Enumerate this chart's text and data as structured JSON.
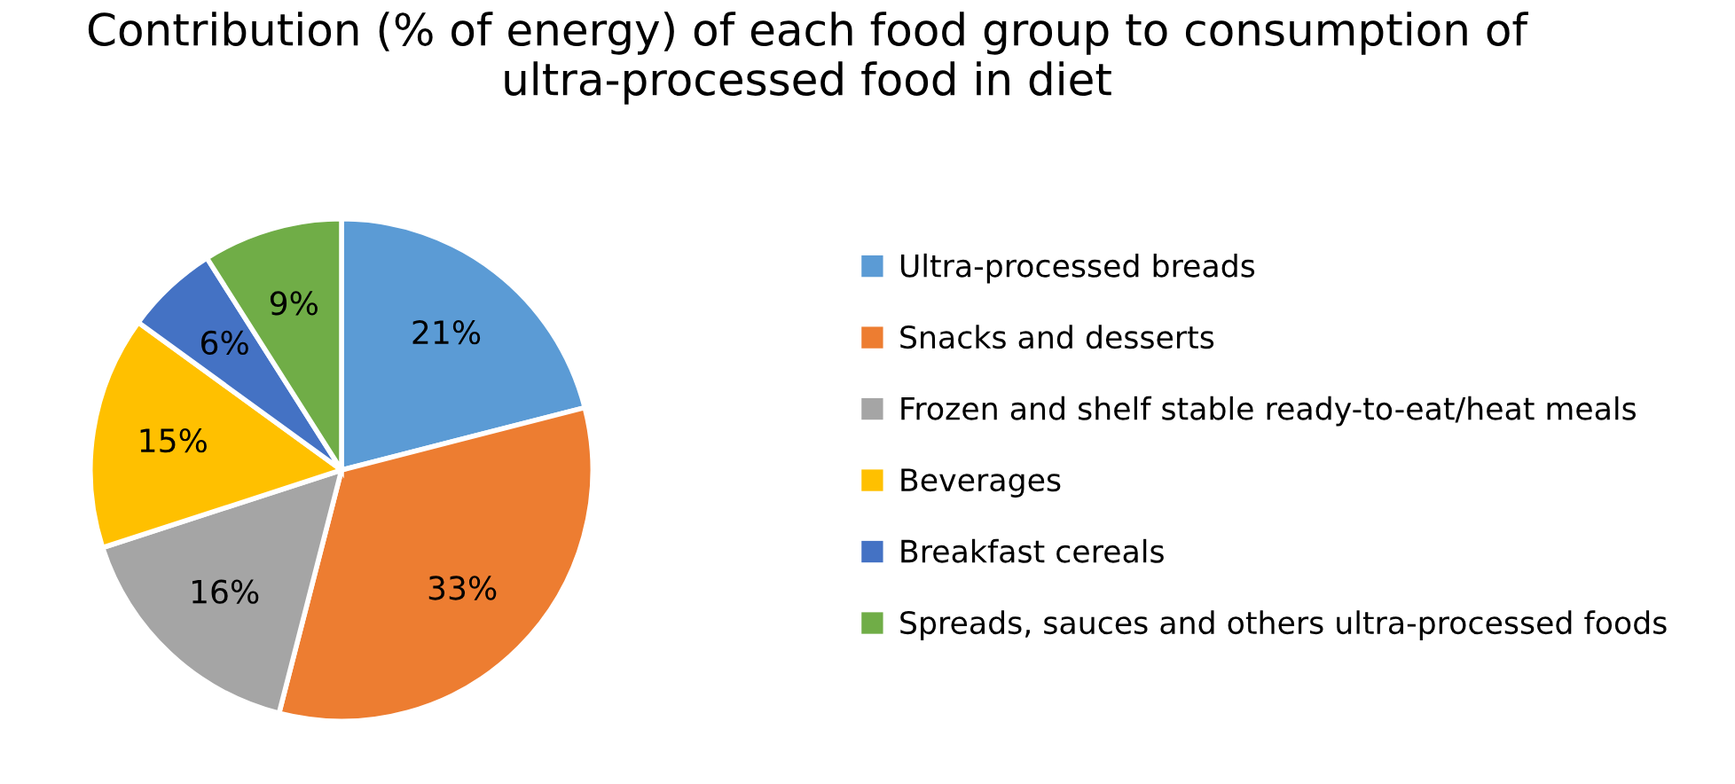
{
  "chart_data": {
    "type": "pie",
    "title": "Contribution (% of energy) of each food group to consumption of ultra-processed food in diet",
    "categories": [
      "Ultra-processed breads",
      "Snacks and desserts",
      "Frozen and shelf stable ready-to-eat/heat meals",
      "Beverages",
      "Breakfast cereals",
      "Spreads, sauces and others ultra-processed foods"
    ],
    "values": [
      21,
      33,
      16,
      15,
      6,
      9
    ],
    "colors": [
      "#5b9bd5",
      "#ed7d31",
      "#a5a5a5",
      "#ffc000",
      "#4472c4",
      "#70ad47"
    ],
    "value_labels": [
      "21%",
      "33%",
      "16%",
      "15%",
      "6%",
      "9%"
    ],
    "legend": "right"
  }
}
